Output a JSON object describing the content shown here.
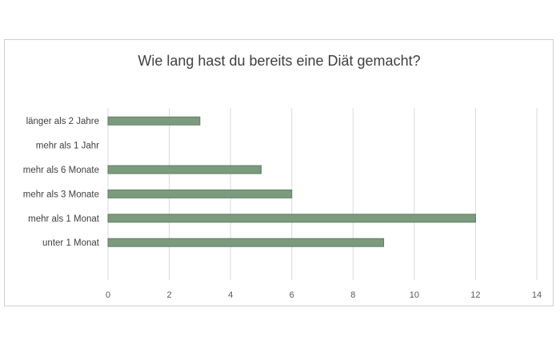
{
  "chart_data": {
    "type": "bar",
    "orientation": "horizontal",
    "title": "Wie lang hast du bereits eine Diät gemacht?",
    "categories": [
      "länger als 2 Jahre",
      "mehr als 1 Jahr",
      "mehr als 6 Monate",
      "mehr als 3 Monate",
      "mehr als 1 Monat",
      "unter 1 Monat"
    ],
    "values": [
      3,
      0,
      5,
      6,
      12,
      9
    ],
    "xlim": [
      0,
      14
    ],
    "xticks": [
      "0",
      "2",
      "4",
      "6",
      "8",
      "10",
      "12",
      "14"
    ],
    "grid": true,
    "legend": "none",
    "bar_color": "#7c9a7e",
    "bar_border_color": "#5f7f62",
    "grid_color": "#d9d9d9"
  }
}
